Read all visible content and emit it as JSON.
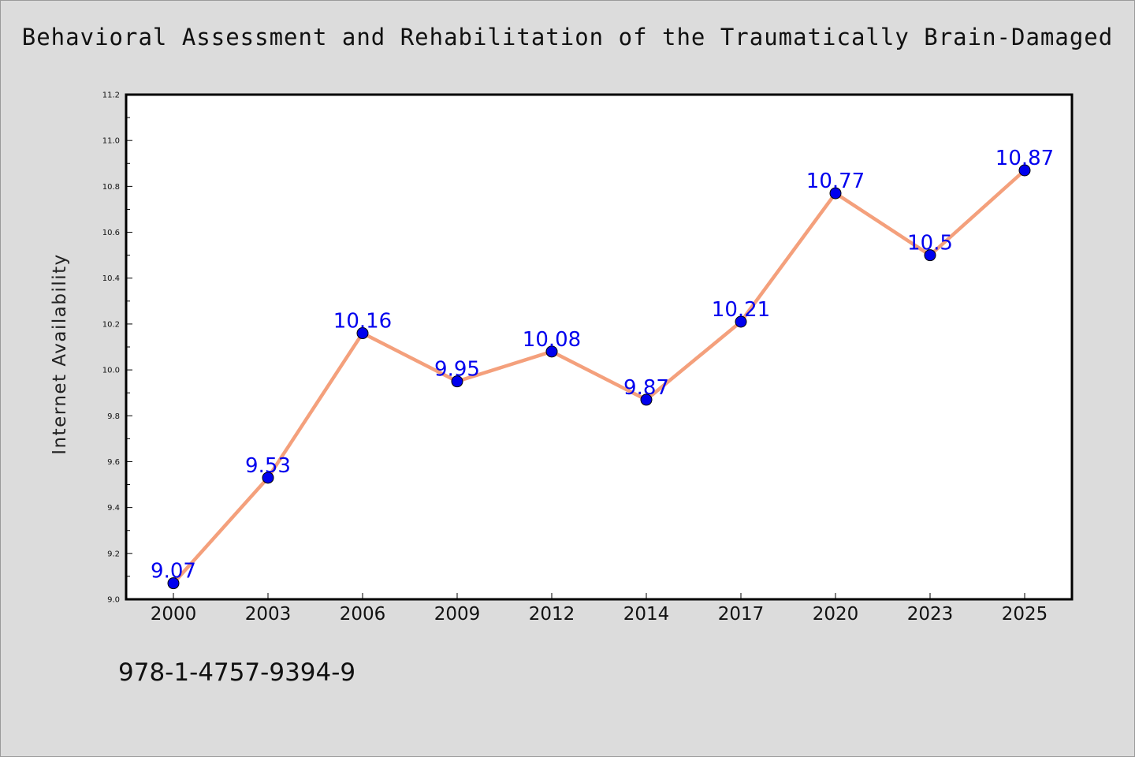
{
  "page": {
    "title": "Behavioral Assessment and Rehabilitation of the Traumatically Brain-Damaged",
    "isbn": "978-1-4757-9394-9"
  },
  "chart_data": {
    "type": "line",
    "title": "Behavioral Assessment and Rehabilitation of the Traumatically Brain-Damaged",
    "xlabel": "",
    "ylabel": "Internet Availability",
    "categories": [
      "2000",
      "2003",
      "2006",
      "2009",
      "2012",
      "2014",
      "2017",
      "2020",
      "2023",
      "2025"
    ],
    "series": [
      {
        "values": [
          9.07,
          9.53,
          10.16,
          9.95,
          10.08,
          9.87,
          10.21,
          10.77,
          10.5,
          10.87
        ],
        "data_labels": [
          "9.07",
          "9.53",
          "10.16",
          "9.95",
          "10.08",
          "9.87",
          "10.21",
          "10.77",
          "10.5",
          "10.87"
        ],
        "line_color": "#f4a07c",
        "marker_color": "#0000ee"
      }
    ],
    "ylim": [
      9.0,
      11.2
    ],
    "yticks": [
      "9.0",
      "9.2",
      "9.4",
      "9.6",
      "9.8",
      "10.0",
      "10.2",
      "10.4",
      "10.6",
      "10.8",
      "11.0",
      "11.2"
    ],
    "grid": false,
    "legend": "none",
    "colors": {
      "background": "#dcdcdc",
      "plot_background": "#ffffff",
      "label_color": "#0000ee"
    }
  }
}
